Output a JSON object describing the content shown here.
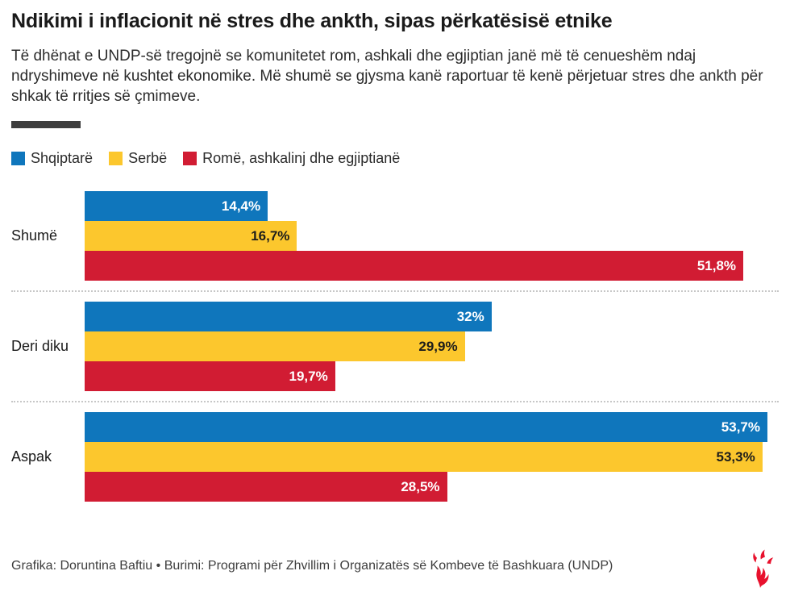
{
  "header": {
    "title": "Ndikimi i inflacionit në stres dhe ankth, sipas përkatësisë etnike",
    "subtitle": "Të dhënat e UNDP-së tregojnë se komunitetet rom, ashkali dhe egjiptian janë më të cenueshëm ndaj ndryshimeve në kushtet ekonomike. Më shumë se gjysma kanë raportuar të kenë përjetuar stres dhe ankth për shkak të rritjes së çmimeve."
  },
  "chart_data": {
    "type": "bar",
    "orientation": "horizontal",
    "title": "Ndikimi i inflacionit në stres dhe ankth, sipas përkatësisë etnike",
    "categories": [
      "Shumë",
      "Deri diku",
      "Aspak"
    ],
    "series": [
      {
        "name": "Shqiptarë",
        "color": "#0f76bc",
        "label_color": "#ffffff",
        "values": [
          14.4,
          32,
          53.7
        ],
        "value_labels": [
          "14,4%",
          "32%",
          "53,7%"
        ]
      },
      {
        "name": "Serbë",
        "color": "#fcc72d",
        "label_color": "#1d1d1b",
        "values": [
          16.7,
          29.9,
          53.3
        ],
        "value_labels": [
          "16,7%",
          "29,9%",
          "53,3%"
        ]
      },
      {
        "name": "Romë, ashkalinj dhe egjiptianë",
        "color": "#d11c33",
        "label_color": "#ffffff",
        "values": [
          51.8,
          19.7,
          28.5
        ],
        "value_labels": [
          "51,8%",
          "19,7%",
          "28,5%"
        ]
      }
    ],
    "xlim": [
      0,
      53.7
    ],
    "unit": "%",
    "grid": false,
    "legend_position": "top"
  },
  "footer": {
    "credit": "Grafika: Doruntina Baftiu • Burimi: Programi për Zhvillim i Organizatës së Kombeve të Bashkuara (UNDP)"
  },
  "branding": {
    "logo": "rferl-torch-icon",
    "logo_color": "#e8112d"
  },
  "colors": {
    "accent_bar": "#3e3e3e",
    "background": "#ffffff"
  }
}
